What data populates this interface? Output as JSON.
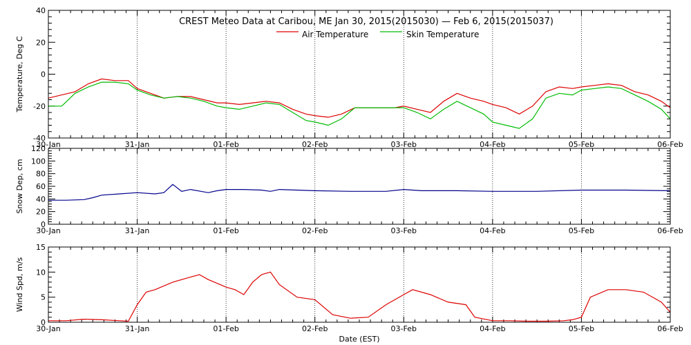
{
  "title": "CREST Meteo Data at Caribou, ME   Jan 30, 2015(2015030) — Feb  6, 2015(2015037)",
  "xlabel": "Date (EST)",
  "chart_data": [
    {
      "type": "line",
      "ylabel": "Temperature, Deg C",
      "ylim": [
        -40,
        40
      ],
      "yticks": [
        "-40",
        "-20",
        "0",
        "20",
        "40"
      ],
      "ytick_values": [
        -40,
        -20,
        0,
        20,
        40
      ],
      "xlim": [
        0,
        7
      ],
      "x_tick_labels": [
        "30-Jan",
        "31-Jan",
        "01-Feb",
        "02-Feb",
        "03-Feb",
        "04-Feb",
        "05-Feb",
        "06-Feb"
      ],
      "grid": true,
      "legend_position": "top-center",
      "series": [
        {
          "name": "Air Temperature",
          "color": "#dd0000",
          "x": [
            0,
            0.15,
            0.3,
            0.45,
            0.6,
            0.75,
            0.9,
            1.0,
            1.15,
            1.3,
            1.45,
            1.6,
            1.75,
            1.9,
            2.0,
            2.15,
            2.3,
            2.45,
            2.6,
            2.75,
            2.9,
            3.0,
            3.15,
            3.3,
            3.45,
            3.6,
            3.75,
            3.9,
            4.0,
            4.15,
            4.3,
            4.45,
            4.6,
            4.75,
            4.9,
            5.0,
            5.15,
            5.3,
            5.45,
            5.6,
            5.75,
            5.9,
            6.0,
            6.15,
            6.3,
            6.45,
            6.6,
            6.75,
            6.9,
            7.0
          ],
          "y": [
            -15,
            -13,
            -11,
            -6,
            -3,
            -4,
            -4,
            -9,
            -12,
            -15,
            -14,
            -14,
            -16,
            -18,
            -18,
            -19,
            -18,
            -17,
            -18,
            -22,
            -25,
            -26,
            -27,
            -25,
            -21,
            -21,
            -21,
            -21,
            -20,
            -22,
            -24,
            -17,
            -12,
            -15,
            -17,
            -19,
            -21,
            -25,
            -20,
            -11,
            -8,
            -9,
            -8,
            -7,
            -6,
            -7,
            -11,
            -13,
            -17,
            -21
          ]
        },
        {
          "name": "Skin Temperature",
          "color": "#00bb00",
          "x": [
            0,
            0.15,
            0.3,
            0.45,
            0.6,
            0.75,
            0.9,
            1.0,
            1.15,
            1.3,
            1.45,
            1.6,
            1.75,
            1.9,
            2.0,
            2.15,
            2.3,
            2.45,
            2.6,
            2.75,
            2.9,
            3.0,
            3.15,
            3.3,
            3.45,
            3.6,
            3.75,
            3.9,
            4.0,
            4.15,
            4.3,
            4.45,
            4.6,
            4.75,
            4.9,
            5.0,
            5.15,
            5.3,
            5.45,
            5.6,
            5.75,
            5.9,
            6.0,
            6.15,
            6.3,
            6.45,
            6.6,
            6.75,
            6.9,
            7.0
          ],
          "y": [
            -20,
            -20,
            -12,
            -8,
            -5,
            -5,
            -6,
            -10,
            -13,
            -15,
            -14,
            -15,
            -17,
            -20,
            -21,
            -22,
            -20,
            -18,
            -19,
            -24,
            -29,
            -30,
            -32,
            -28,
            -21,
            -21,
            -21,
            -21,
            -21,
            -24,
            -28,
            -22,
            -17,
            -21,
            -25,
            -30,
            -32,
            -34,
            -28,
            -15,
            -12,
            -13,
            -10,
            -9,
            -8,
            -9,
            -13,
            -17,
            -22,
            -28
          ]
        }
      ]
    },
    {
      "type": "line",
      "ylabel": "Snow Dep, cm",
      "ylim": [
        0,
        120
      ],
      "yticks": [
        "0",
        "20",
        "40",
        "60",
        "80",
        "100",
        "120"
      ],
      "ytick_values": [
        0,
        20,
        40,
        60,
        80,
        100,
        120
      ],
      "xlim": [
        0,
        7
      ],
      "x_tick_labels": [
        "30-Jan",
        "31-Jan",
        "01-Feb",
        "02-Feb",
        "03-Feb",
        "04-Feb",
        "05-Feb",
        "06-Feb"
      ],
      "grid": true,
      "series": [
        {
          "name": "",
          "color": "#00008b",
          "x": [
            0,
            0.2,
            0.4,
            0.5,
            0.6,
            0.8,
            1.0,
            1.2,
            1.3,
            1.4,
            1.5,
            1.6,
            1.8,
            1.9,
            2.0,
            2.2,
            2.4,
            2.5,
            2.6,
            2.8,
            3.0,
            3.4,
            3.8,
            4.0,
            4.2,
            4.6,
            5.0,
            5.5,
            6.0,
            6.5,
            7.0
          ],
          "y": [
            38,
            38,
            39,
            42,
            46,
            48,
            50,
            48,
            50,
            63,
            52,
            55,
            50,
            53,
            55,
            55,
            54,
            52,
            55,
            54,
            53,
            52,
            52,
            55,
            53,
            53,
            52,
            52,
            54,
            54,
            53
          ]
        }
      ]
    },
    {
      "type": "line",
      "ylabel": "Wind Spd, m/s",
      "ylim": [
        0,
        15
      ],
      "yticks": [
        "0",
        "5",
        "10",
        "15"
      ],
      "ytick_values": [
        0,
        5,
        10,
        15
      ],
      "xlim": [
        0,
        7
      ],
      "x_tick_labels": [
        "30-Jan",
        "31-Jan",
        "01-Feb",
        "02-Feb",
        "03-Feb",
        "04-Feb",
        "05-Feb",
        "06-Feb"
      ],
      "grid": true,
      "series": [
        {
          "name": "",
          "color": "#dd0000",
          "x": [
            0,
            0.2,
            0.4,
            0.6,
            0.8,
            0.9,
            1.0,
            1.1,
            1.2,
            1.4,
            1.6,
            1.7,
            1.8,
            2.0,
            2.1,
            2.2,
            2.3,
            2.4,
            2.5,
            2.6,
            2.8,
            3.0,
            3.2,
            3.4,
            3.6,
            3.8,
            4.0,
            4.1,
            4.3,
            4.5,
            4.7,
            4.8,
            5.0,
            5.2,
            5.4,
            5.6,
            5.8,
            5.9,
            6.0,
            6.1,
            6.3,
            6.5,
            6.7,
            6.9,
            7.0
          ],
          "y": [
            0.3,
            0.3,
            0.6,
            0.5,
            0.3,
            0.2,
            3.5,
            6.0,
            6.5,
            8.0,
            9.0,
            9.5,
            8.5,
            7.0,
            6.5,
            5.5,
            8.0,
            9.5,
            10.0,
            7.5,
            5.0,
            4.5,
            1.5,
            0.8,
            1.0,
            3.5,
            5.5,
            6.5,
            5.5,
            4.0,
            3.5,
            1.0,
            0.3,
            0.3,
            0.2,
            0.2,
            0.3,
            0.5,
            1.0,
            5.0,
            6.5,
            6.5,
            6.0,
            4.0,
            2.0
          ]
        }
      ]
    }
  ]
}
